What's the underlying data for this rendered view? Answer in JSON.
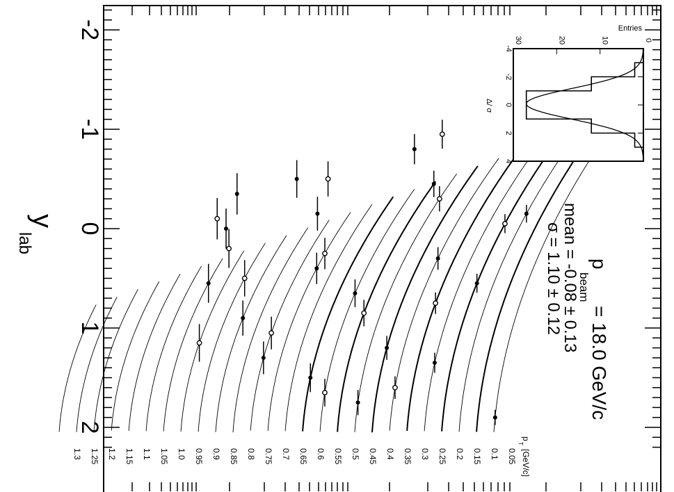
{
  "chart_data": {
    "type": "scatter",
    "x_axis": {
      "label": "y",
      "label_sub": "lab",
      "ticks": [
        "-2",
        "-1",
        "0",
        "1",
        "2"
      ],
      "range": [
        -2.4,
        2.4
      ]
    },
    "pt_axis": {
      "label": "p",
      "label_sub": "T",
      "unit": "[GeV/c]",
      "values": [
        "0.05",
        "0.1",
        "0.15",
        "0.2",
        "0.25",
        "0.3",
        "0.35",
        "0.4",
        "0.45",
        "0.5",
        "0.55",
        "0.6",
        "0.65",
        "0.7",
        "0.75",
        "0.8",
        "0.85",
        "0.9",
        "0.95",
        "1.0",
        "1.05",
        "1.1",
        "1.15",
        "1.2",
        "1.25",
        "1.3"
      ]
    },
    "info": {
      "title_main": "p",
      "title_sub": "beam",
      "title_value": "= 18.0 GeV/c",
      "mean": "mean = -0.08 ± 0.13",
      "sigma": "σ = 1.10 ± 0.12"
    },
    "inset": {
      "title": "Entries",
      "xlabel": "Δ/ σ",
      "x_ticks": [
        "-4",
        "-2",
        "0",
        "2",
        "4"
      ],
      "y_ticks": [
        "0",
        "10",
        "20",
        "30"
      ],
      "hist_edges": [
        -4,
        -3,
        -2,
        -1,
        0,
        1,
        2,
        3,
        4
      ],
      "hist_counts": [
        0,
        2,
        12,
        27,
        27,
        12,
        2,
        0
      ]
    },
    "series": [
      {
        "marker": "filled",
        "points": [
          [
            -1.12,
            0.1
          ],
          [
            -0.15,
            0.15
          ],
          [
            0.55,
            0.2
          ],
          [
            1.35,
            0.25
          ],
          [
            1.9,
            0.05
          ],
          [
            -0.95,
            0.3
          ],
          [
            0.3,
            0.35
          ],
          [
            1.2,
            0.4
          ],
          [
            1.75,
            0.45
          ],
          [
            -0.45,
            0.5
          ],
          [
            0.65,
            0.55
          ],
          [
            1.5,
            0.6
          ],
          [
            -0.8,
            0.65
          ],
          [
            0.4,
            0.7
          ],
          [
            1.3,
            0.75
          ],
          [
            -0.15,
            0.8
          ],
          [
            0.9,
            0.85
          ],
          [
            -0.5,
            0.95
          ],
          [
            0.55,
            1.0
          ],
          [
            0.0,
            1.05
          ],
          [
            -0.35,
            1.1
          ]
        ]
      },
      {
        "marker": "open",
        "points": [
          [
            -1.3,
            0.1
          ],
          [
            -0.05,
            0.2
          ],
          [
            0.75,
            0.3
          ],
          [
            1.6,
            0.35
          ],
          [
            -0.3,
            0.45
          ],
          [
            0.85,
            0.5
          ],
          [
            1.65,
            0.55
          ],
          [
            -0.95,
            0.6
          ],
          [
            0.25,
            0.7
          ],
          [
            1.05,
            0.75
          ],
          [
            -0.5,
            0.85
          ],
          [
            0.5,
            0.9
          ],
          [
            1.15,
            0.95
          ],
          [
            0.2,
            1.0
          ],
          [
            -0.1,
            1.1
          ]
        ]
      }
    ]
  }
}
